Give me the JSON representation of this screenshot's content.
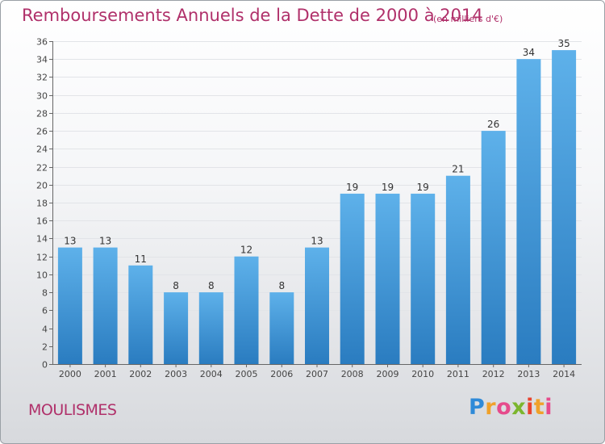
{
  "chart_data": {
    "type": "bar",
    "title": "Remboursements Annuels de la Dette de 2000 à 2014",
    "subtitle": "(en milliers d'€)",
    "categories": [
      "2000",
      "2001",
      "2002",
      "2003",
      "2004",
      "2005",
      "2006",
      "2007",
      "2008",
      "2009",
      "2010",
      "2011",
      "2012",
      "2013",
      "2014"
    ],
    "values": [
      13,
      13,
      11,
      8,
      8,
      12,
      8,
      13,
      19,
      19,
      19,
      21,
      26,
      34,
      35
    ],
    "ylim": [
      0,
      36
    ],
    "y_ticks": [
      0,
      2,
      4,
      6,
      8,
      10,
      12,
      14,
      16,
      18,
      20,
      22,
      24,
      26,
      28,
      30,
      32,
      34,
      36
    ],
    "grid": true,
    "bar_color": "#3a92d6",
    "title_color": "#b0306a"
  },
  "footer": {
    "commune": "MOULISMES",
    "logo": {
      "letters": [
        "P",
        "r",
        "o",
        "x",
        "i",
        "t",
        "i"
      ]
    }
  }
}
